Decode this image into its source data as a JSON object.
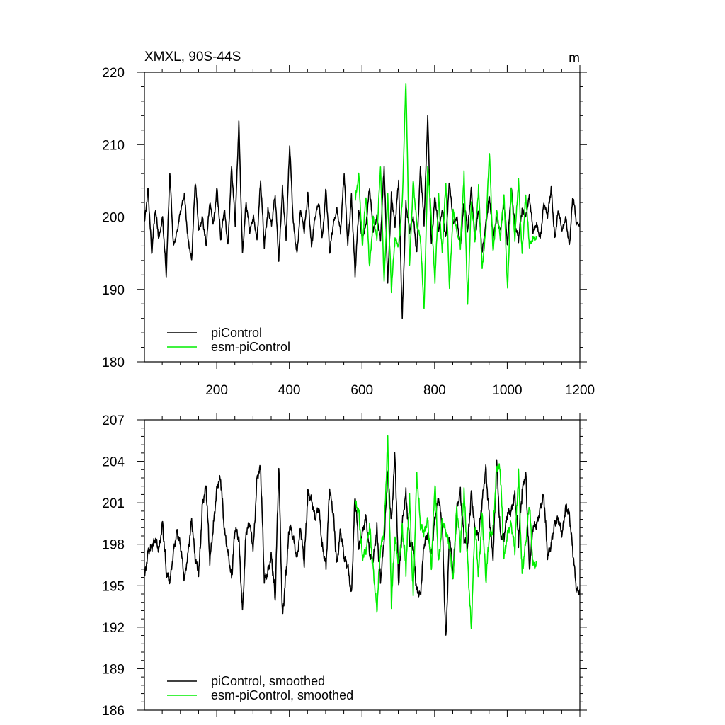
{
  "colors": {
    "piControl": "#000000",
    "esm": "#00ee00"
  },
  "chart_data": [
    {
      "type": "line",
      "title": "XMXL, 90S-44S",
      "units": "m",
      "xlim": [
        1,
        1200
      ],
      "ylim": [
        180,
        220
      ],
      "x_ticks": [
        200,
        400,
        600,
        800,
        1000,
        1200
      ],
      "x_tick_labels": [
        "200",
        "400",
        "600",
        "800",
        "1000",
        "1200"
      ],
      "y_ticks": [
        180,
        190,
        200,
        210,
        220
      ],
      "y_tick_labels": [
        "180",
        "190",
        "200",
        "210",
        "220"
      ],
      "legend": {
        "placement": "bottom-left"
      },
      "series": [
        {
          "name": "piControl",
          "color": "#000000",
          "x_start": 1,
          "step": 10,
          "values": [
            199,
            204,
            195,
            201,
            197,
            200,
            192,
            206,
            196,
            198,
            201,
            203,
            197,
            194,
            205,
            198,
            200,
            196,
            202,
            199,
            204,
            197,
            201,
            196,
            207,
            199,
            213,
            195,
            202,
            198,
            200,
            197,
            205,
            196,
            201,
            199,
            203,
            194,
            204,
            197,
            210,
            199,
            195,
            201,
            198,
            203,
            196,
            200,
            202,
            197,
            204,
            195,
            199,
            201,
            198,
            206,
            196,
            203,
            192,
            201,
            197,
            199,
            204,
            198,
            200,
            197,
            207,
            191,
            203,
            199,
            205,
            186,
            202,
            198,
            200,
            195,
            207,
            199,
            214,
            196,
            203,
            198,
            201,
            197,
            205,
            199,
            200,
            196,
            202,
            198,
            204,
            197,
            201,
            195,
            199,
            203,
            197,
            200,
            198,
            202,
            196,
            204,
            199,
            197,
            201,
            200,
            203,
            198,
            199,
            197,
            202,
            200,
            204,
            197,
            201,
            198,
            200,
            196,
            203,
            199
          ]
        },
        {
          "name": "esm-piControl",
          "color": "#00ee00",
          "x_start": 581,
          "step": 10,
          "values": [
            202,
            206,
            196,
            203,
            193,
            200,
            197,
            207,
            191,
            203,
            190,
            197,
            196,
            202,
            219,
            193,
            205,
            199,
            197,
            187,
            207,
            200,
            191,
            203,
            195,
            205,
            190,
            201,
            198,
            196,
            206,
            188,
            202,
            197,
            204,
            193,
            198,
            209,
            195,
            201,
            197,
            203,
            190,
            204,
            197,
            205,
            195,
            203,
            196,
            197
          ]
        }
      ]
    },
    {
      "type": "line",
      "xlim": [
        1,
        1200
      ],
      "ylim": [
        186,
        207
      ],
      "x_ticks": [
        200,
        400,
        600,
        800,
        1000,
        1200
      ],
      "y_ticks": [
        186,
        189,
        192,
        195,
        198,
        201,
        204,
        207
      ],
      "y_tick_labels": [
        "186",
        "189",
        "192",
        "195",
        "198",
        "201",
        "204",
        "207"
      ],
      "legend": {
        "placement": "bottom-left"
      },
      "series": [
        {
          "name": "piControl, smoothed",
          "color": "#000000",
          "x_start": 1,
          "step": 10,
          "values": [
            195.5,
            197.5,
            197.8,
            198.3,
            197.6,
            199.6,
            196,
            195.2,
            197.5,
            199,
            197.8,
            195.4,
            197.4,
            199.8,
            196.9,
            195.9,
            201,
            202.2,
            196.7,
            199.4,
            202.2,
            202.8,
            199,
            197.4,
            195.6,
            199.2,
            198.3,
            193.2,
            198.9,
            199.5,
            197.6,
            202.9,
            203.5,
            195.4,
            196,
            197.2,
            194,
            203.6,
            192.8,
            196,
            199.4,
            198.4,
            197,
            199.2,
            196.6,
            201.7,
            201.3,
            199.8,
            200.7,
            197.8,
            196.5,
            202,
            200.1,
            196.6,
            199,
            197,
            196.4,
            194.4,
            201.6,
            197.7,
            198.8,
            200.1,
            197.2,
            196.8,
            199.1,
            195.4,
            198.2,
            203.3,
            199.7,
            204.6,
            195,
            199.5,
            201.8,
            198.1,
            197.8,
            194.6,
            194.4,
            197.9,
            198.8,
            197.2,
            200,
            201.3,
            199.4,
            191,
            198.8,
            195.6,
            200.6,
            201.8,
            198.4,
            197.8,
            201.8,
            199.1,
            198.5,
            201.1,
            203.5,
            199.8,
            196.9,
            204,
            198.7,
            198.5,
            200.2,
            200.4,
            201.6,
            198.3,
            201.8,
            203.2,
            196.2,
            199.2,
            199.4,
            200.6,
            201.6,
            197,
            198,
            199.6,
            199.8,
            198.6,
            200.8,
            200.2,
            197.4,
            194.6
          ]
        },
        {
          "name": "esm-piControl, smoothed",
          "color": "#00ee00",
          "x_start": 581,
          "step": 10,
          "values": [
            201,
            200.4,
            197.1,
            197.5,
            199.3,
            196.2,
            193.3,
            197.6,
            199,
            205.6,
            193.8,
            198.4,
            196.6,
            199.3,
            196.2,
            201.3,
            194.3,
            203.1,
            199.3,
            198.8,
            199.8,
            196.3,
            202.4,
            196.6,
            199.8,
            198.9,
            197.8,
            195.4,
            200.7,
            197.9,
            201.7,
            196.9,
            191.8,
            199.4,
            195.8,
            200.3,
            195.4,
            198.6,
            199,
            203.6,
            203.4,
            196.9,
            198.9,
            199.5,
            197.6,
            203.1,
            195.9,
            198.1,
            200.9,
            196.5
          ]
        }
      ]
    }
  ]
}
